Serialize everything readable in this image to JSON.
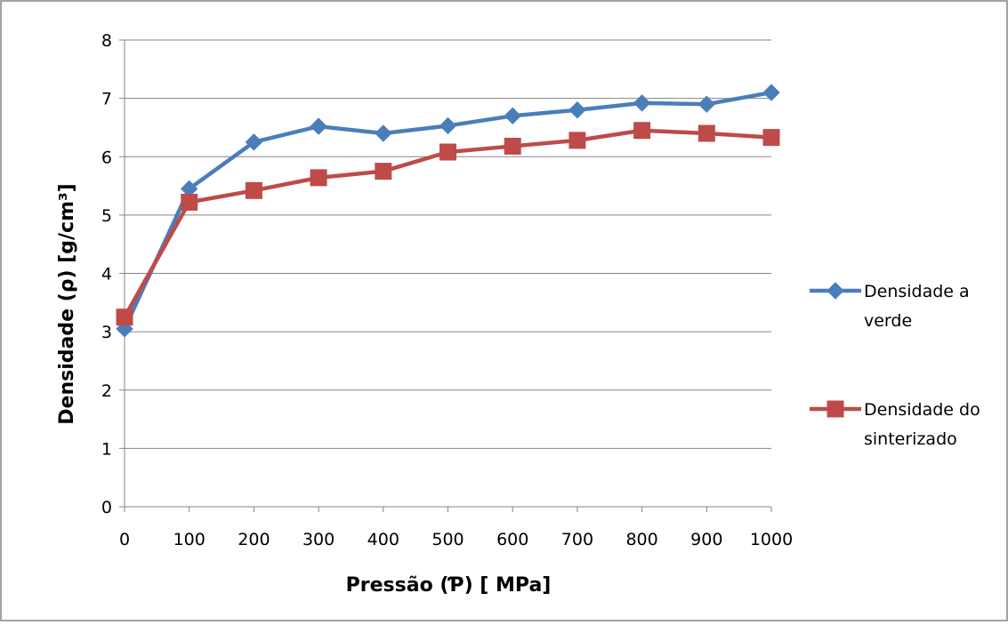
{
  "chart_data": {
    "type": "line",
    "title": "",
    "xlabel": "Pressão (Ƥ) [ MPa]",
    "ylabel": "Densidade (ρ) [g/cm³]",
    "x": [
      0,
      100,
      200,
      300,
      400,
      500,
      600,
      700,
      800,
      900,
      1000
    ],
    "x_tick_labels": [
      "0",
      "100",
      "200",
      "300",
      "400",
      "500",
      "600",
      "700",
      "800",
      "900",
      "1000"
    ],
    "y_tick_labels": [
      "0",
      "1",
      "2",
      "3",
      "4",
      "5",
      "6",
      "7",
      "8"
    ],
    "ylim": [
      0,
      8
    ],
    "grid": "horizontal",
    "legend_position": "right",
    "series": [
      {
        "name_lines": [
          "Densidade a",
          "verde"
        ],
        "color": "#4a7ebb",
        "marker": "diamond",
        "values": [
          3.05,
          5.45,
          6.25,
          6.52,
          6.4,
          6.53,
          6.7,
          6.8,
          6.92,
          6.9,
          7.1
        ]
      },
      {
        "name_lines": [
          "Densidade do",
          "sinterizado"
        ],
        "color": "#be4b48",
        "marker": "square",
        "values": [
          3.25,
          5.22,
          5.42,
          5.64,
          5.75,
          6.08,
          6.18,
          6.28,
          6.45,
          6.4,
          6.33
        ]
      }
    ]
  }
}
